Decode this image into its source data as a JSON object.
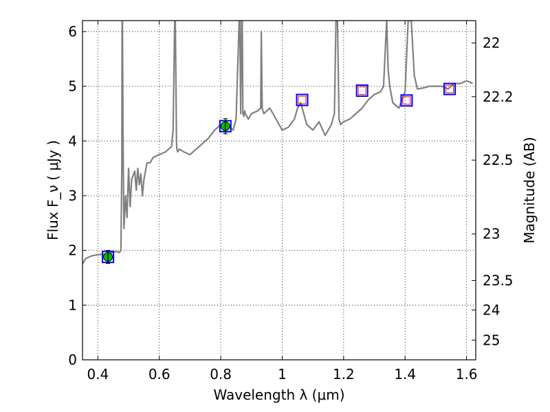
{
  "chart_data": {
    "type": "line",
    "title": "",
    "xlabel": "Wavelength  λ (μm)",
    "ylabel": "Flux  F_ν  ( μJy )",
    "ylabel_right": "Magnitude (AB)",
    "xlim": [
      0.35,
      1.63
    ],
    "ylim": [
      0,
      6.2
    ],
    "grid": true,
    "x_ticks": [
      0.4,
      0.6,
      0.8,
      1.0,
      1.2,
      1.4,
      1.6
    ],
    "x_tick_labels": [
      "0.4",
      "0.6",
      "0.8",
      "1",
      "1.2",
      "1.4",
      "1.6"
    ],
    "y_ticks": [
      0,
      1,
      2,
      3,
      4,
      5,
      6
    ],
    "y_tick_labels": [
      "0",
      "1",
      "2",
      "3",
      "4",
      "5",
      "6"
    ],
    "right_tick_labels": [
      "22",
      "22.2",
      "22.5",
      "23",
      "23.5",
      "24",
      "25"
    ],
    "right_tick_flux": [
      5.79,
      4.81,
      3.65,
      2.3,
      1.45,
      0.91,
      0.36
    ],
    "series": [
      {
        "style": "spectrum",
        "color": "#808080",
        "x": [
          0.35,
          0.36,
          0.38,
          0.4,
          0.42,
          0.44,
          0.46,
          0.47,
          0.475,
          0.478,
          0.479,
          0.48,
          0.482,
          0.485,
          0.49,
          0.495,
          0.5,
          0.505,
          0.51,
          0.52,
          0.525,
          0.53,
          0.535,
          0.54,
          0.545,
          0.55,
          0.56,
          0.57,
          0.58,
          0.6,
          0.62,
          0.64,
          0.645,
          0.65,
          0.652,
          0.655,
          0.656,
          0.657,
          0.66,
          0.665,
          0.68,
          0.7,
          0.72,
          0.74,
          0.76,
          0.78,
          0.8,
          0.82,
          0.84,
          0.85,
          0.86,
          0.862,
          0.865,
          0.868,
          0.87,
          0.872,
          0.875,
          0.878,
          0.88,
          0.89,
          0.9,
          0.92,
          0.93,
          0.932,
          0.935,
          0.94,
          0.96,
          0.98,
          1.0,
          1.02,
          1.04,
          1.05,
          1.06,
          1.07,
          1.08,
          1.1,
          1.12,
          1.14,
          1.16,
          1.17,
          1.175,
          1.18,
          1.185,
          1.19,
          1.2,
          1.22,
          1.24,
          1.26,
          1.28,
          1.3,
          1.32,
          1.33,
          1.34,
          1.345,
          1.35,
          1.36,
          1.38,
          1.4,
          1.41,
          1.42,
          1.43,
          1.44,
          1.46,
          1.48,
          1.5,
          1.52,
          1.54,
          1.56,
          1.58,
          1.6,
          1.62
        ],
        "y": [
          1.75,
          1.85,
          1.9,
          1.92,
          1.93,
          1.95,
          1.98,
          1.96,
          2.0,
          3.5,
          6.2,
          6.2,
          4.0,
          2.4,
          3.0,
          2.6,
          3.5,
          2.8,
          3.3,
          3.45,
          3.1,
          3.5,
          3.2,
          3.4,
          3.0,
          3.3,
          3.6,
          3.6,
          3.7,
          3.75,
          3.8,
          3.9,
          4.2,
          6.2,
          6.2,
          4.6,
          4.0,
          3.85,
          3.8,
          3.85,
          3.8,
          3.75,
          3.85,
          3.95,
          4.05,
          4.2,
          4.3,
          4.3,
          4.2,
          4.4,
          6.2,
          6.2,
          4.5,
          6.2,
          6.2,
          4.5,
          4.45,
          4.55,
          4.5,
          4.4,
          4.5,
          4.55,
          4.6,
          6.0,
          4.6,
          4.5,
          4.6,
          4.4,
          4.2,
          4.25,
          4.4,
          4.6,
          4.7,
          4.5,
          4.3,
          4.2,
          4.35,
          4.1,
          4.3,
          4.5,
          6.2,
          6.2,
          4.4,
          4.3,
          4.35,
          4.4,
          4.5,
          4.6,
          4.75,
          4.85,
          4.9,
          5.0,
          6.2,
          5.3,
          5.0,
          4.7,
          4.6,
          4.9,
          6.2,
          6.2,
          5.2,
          4.95,
          4.97,
          5.0,
          5.0,
          5.0,
          4.95,
          5.05,
          5.05,
          5.1,
          5.05
        ]
      }
    ],
    "photometry": [
      {
        "x": 0.433,
        "y": 1.88,
        "err": 0.08,
        "detected": true
      },
      {
        "x": 0.815,
        "y": 4.27,
        "err": 0.1,
        "detected": true
      },
      {
        "x": 1.065,
        "y": 4.75,
        "err": 0,
        "detected": false
      },
      {
        "x": 1.26,
        "y": 4.92,
        "err": 0,
        "detected": false
      },
      {
        "x": 1.405,
        "y": 4.74,
        "err": 0,
        "detected": false
      },
      {
        "x": 1.545,
        "y": 4.95,
        "err": 0,
        "detected": false
      }
    ],
    "colors": {
      "spectrum": "#808080",
      "box": "#0000ff",
      "upper_limit": "#ff0000",
      "detected": "#00bb00"
    }
  }
}
